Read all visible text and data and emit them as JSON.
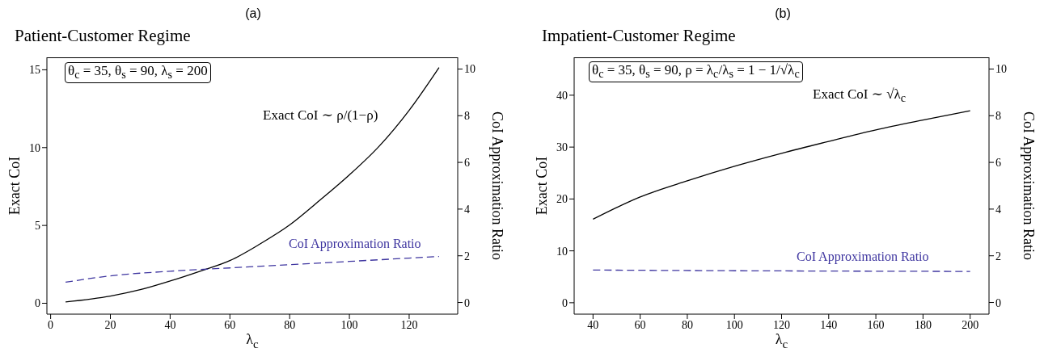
{
  "chart_data": [
    {
      "type": "line",
      "title": "Patient-Customer Regime",
      "xlabel": "λ$_{c}$",
      "ylabel": "Exact CoI",
      "y2label": "CoI Approximation Ratio",
      "annotations": [
        "(a)",
        "θ$_{c}$ = 35, θ$_{s}$ = 90, λ$_{s}$ = 200",
        "Exact CoI ∼ ρ/(1−ρ)"
      ],
      "series": [
        {
          "color": "#000000",
          "line_style": "solid",
          "x": [
            5,
            20,
            30,
            40,
            50,
            60,
            70,
            80,
            90,
            100,
            110,
            120,
            130
          ],
          "values": [
            0.08,
            0.46,
            0.87,
            1.43,
            2.06,
            2.74,
            3.8,
            5.03,
            6.6,
            8.25,
            10.1,
            12.4,
            15.15
          ]
        },
        {
          "name": "CoI Approximation Ratio",
          "axis": "y2",
          "color": "#3f36a0",
          "line_style": "dashed",
          "x": [
            5,
            20,
            40,
            60,
            80,
            100,
            120,
            130
          ],
          "values": [
            0.87,
            1.14,
            1.34,
            1.48,
            1.62,
            1.76,
            1.9,
            1.97
          ]
        }
      ],
      "xlim": [
        -1.25,
        136.25
      ],
      "xticks": [
        0,
        20,
        40,
        60,
        80,
        100,
        120
      ],
      "ylim": [
        -0.7,
        15.8
      ],
      "yticks": [
        0,
        5,
        10,
        15
      ],
      "y2lim": [
        -0.5,
        10.5
      ],
      "y2ticks": [
        0,
        2,
        4,
        6,
        8,
        10
      ],
      "grid": false,
      "legend": false
    },
    {
      "type": "line",
      "title": "Impatient-Customer Regime",
      "xlabel": "λ$_{c}$",
      "ylabel": "Exact CoI",
      "y2label": "CoI Approximation Ratio",
      "annotations": [
        "(b)",
        "θ$_{c}$ = 35, θ$_{s}$ = 90, ρ = λ$_{c}$/λ$_{s}$ = 1 − 1/√λ$_{c}$",
        "Exact CoI ∼ √λ$_{c}$"
      ],
      "series": [
        {
          "color": "#000000",
          "line_style": "solid",
          "x": [
            40,
            60,
            80,
            100,
            120,
            140,
            160,
            180,
            200
          ],
          "values": [
            16.1,
            20.4,
            23.5,
            26.3,
            28.8,
            31.1,
            33.3,
            35.2,
            37.0
          ]
        },
        {
          "name": "CoI Approximation Ratio",
          "axis": "y2",
          "color": "#3f36a0",
          "line_style": "dashed",
          "x": [
            40,
            100,
            200
          ],
          "values": [
            1.39,
            1.36,
            1.33
          ]
        }
      ],
      "xlim": [
        32,
        208
      ],
      "xticks": [
        40,
        60,
        80,
        100,
        120,
        140,
        160,
        180,
        200
      ],
      "ylim": [
        -2.2,
        47.3
      ],
      "yticks": [
        0,
        10,
        20,
        30,
        40
      ],
      "y2lim": [
        -0.5,
        10.5
      ],
      "y2ticks": [
        0,
        2,
        4,
        6,
        8,
        10
      ],
      "grid": false,
      "legend": false
    }
  ]
}
